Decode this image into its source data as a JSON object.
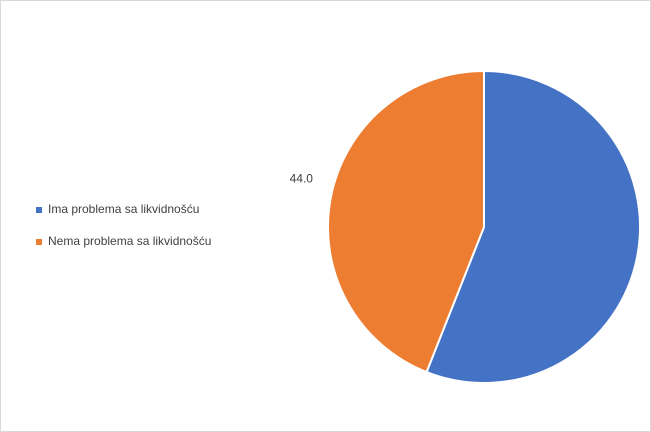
{
  "chart_data": {
    "type": "pie",
    "categories": [
      "Ima problema sa likvidnošću",
      "Nema problema sa likvidnošću"
    ],
    "values": [
      56.0,
      44.0
    ],
    "value_labels": [
      null,
      "44.0"
    ],
    "colors": [
      "#4472c4",
      "#ed7d31"
    ],
    "legend": "left"
  }
}
